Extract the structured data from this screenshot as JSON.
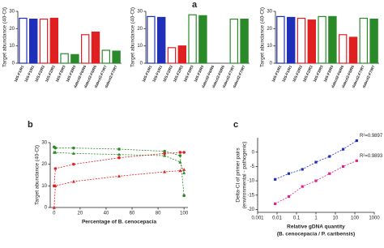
{
  "chart_data": [
    {
      "type": "bar",
      "panel_label": "a",
      "ylabel": "Target abundance (40-Ct)",
      "categories": [
        "16S-F1/R1",
        "16S-F1/R1",
        "16S-F2/R2",
        "16S-F2/R2",
        "16S-F3/R3",
        "16S-F3/R3",
        "dabcd2-F6/R6",
        "dabcd2-F6/R6",
        "dabcd2-F7/R7",
        "dabcd2-F7/R7"
      ],
      "values": [
        26,
        25.5,
        25.5,
        26,
        5.5,
        5,
        16.5,
        18,
        7.5,
        7
      ],
      "colors": [
        "#1f2fb8",
        "#1f2fb8",
        "#e02020",
        "#e02020",
        "#2a8a2a",
        "#2a8a2a",
        "#e02020",
        "#e02020",
        "#2a8a2a",
        "#2a8a2a"
      ],
      "filled": [
        false,
        true,
        false,
        true,
        false,
        true,
        false,
        true,
        false,
        true
      ],
      "ylim": [
        0,
        30
      ],
      "yticks": [
        0,
        10,
        20,
        30
      ]
    },
    {
      "type": "bar",
      "ylabel": "Target abundance (40-Ct)",
      "categories": [
        "16S-F1/R1",
        "16S-F1/R1",
        "16S-F2/R2",
        "16S-F2/R2",
        "16S-F3/R3",
        "16S-F3/R3",
        "dabcd2-F6/R6",
        "dabcd2-F6/R6",
        "dabcd2-F7/R7",
        "dabcd2-F7/R7"
      ],
      "values": [
        27,
        26.5,
        9,
        10,
        28,
        27.5,
        0,
        0,
        25.5,
        25.5
      ],
      "colors": [
        "#1f2fb8",
        "#1f2fb8",
        "#e02020",
        "#e02020",
        "#2a8a2a",
        "#2a8a2a",
        "#e02020",
        "#e02020",
        "#2a8a2a",
        "#2a8a2a"
      ],
      "filled": [
        false,
        true,
        false,
        true,
        false,
        true,
        false,
        true,
        false,
        true
      ],
      "ylim": [
        0,
        30
      ],
      "yticks": [
        0,
        10,
        20,
        30
      ]
    },
    {
      "type": "bar",
      "ylabel": "Target abundance (40-Ct)",
      "categories": [
        "16S-F1/R1",
        "16S-F1/R1",
        "16S-F2/R2",
        "16S-F2/R2",
        "16S-F3/R3",
        "16S-F3/R3",
        "dabcd2-F6/R6",
        "dabcd2-F6/R6",
        "dabcd2-F7/R7",
        "dabcd2-F7/R7"
      ],
      "values": [
        27,
        26.5,
        26,
        25,
        27,
        27,
        16.5,
        15,
        26,
        25.5
      ],
      "colors": [
        "#1f2fb8",
        "#1f2fb8",
        "#e02020",
        "#e02020",
        "#2a8a2a",
        "#2a8a2a",
        "#e02020",
        "#e02020",
        "#2a8a2a",
        "#2a8a2a"
      ],
      "filled": [
        false,
        true,
        false,
        true,
        false,
        true,
        false,
        true,
        false,
        true
      ],
      "ylim": [
        0,
        30
      ],
      "yticks": [
        0,
        10,
        20,
        30
      ]
    },
    {
      "type": "line",
      "panel_label": "b",
      "ylabel": "Target abundance (40-Ct)",
      "xlabel": "Percentage of B. cenocepacia",
      "x": [
        0,
        1,
        15,
        50,
        85,
        97,
        100
      ],
      "series": [
        {
          "color": "#2a8a2a",
          "marker": "circle",
          "values": [
            28,
            27.5,
            27.5,
            27,
            26,
            24,
            5.5
          ]
        },
        {
          "color": "#2a8a2a",
          "marker": "triangle",
          "values": [
            25.5,
            25.5,
            25,
            24.5,
            24,
            21,
            16
          ]
        },
        {
          "color": "#e02020",
          "marker": "circle",
          "values": [
            10,
            18,
            20,
            23,
            25,
            25.5,
            25.5
          ]
        },
        {
          "color": "#e02020",
          "marker": "triangle",
          "values": [
            0,
            10,
            12,
            14.5,
            16.5,
            17,
            17.5
          ]
        }
      ],
      "xlim": [
        -3,
        103
      ],
      "xticks": [
        0,
        20,
        40,
        60,
        80,
        100
      ],
      "ylim": [
        0,
        30
      ],
      "yticks": [
        0,
        10,
        20,
        30
      ]
    },
    {
      "type": "scatter",
      "panel_label": "c",
      "ylabel": [
        "Delta-Ct of primer pairs",
        "(environmental - pathogenic)"
      ],
      "xlabel": [
        "Relative gDNA quantity",
        "(B. cenocepacia / P. caribensis)"
      ],
      "xscale": "log",
      "x": [
        0.008,
        0.04,
        0.2,
        1,
        5,
        25,
        125
      ],
      "series": [
        {
          "color": "#1f2fb8",
          "values": [
            -9.5,
            -7.5,
            -6,
            -3.5,
            -1.5,
            1,
            4
          ],
          "annotation": "R²=0.9897"
        },
        {
          "color": "#e0208a",
          "values": [
            -18,
            -15.5,
            -12,
            -10,
            -7.5,
            -5,
            -3
          ],
          "annotation": "R²=0.9893"
        }
      ],
      "xlim": [
        0.001,
        1000
      ],
      "xticks": [
        0.001,
        0.01,
        0.1,
        1,
        10,
        100,
        1000
      ],
      "ylim": [
        -21,
        5
      ],
      "yticks": [
        -20,
        -15,
        -10,
        -5,
        0
      ]
    }
  ]
}
